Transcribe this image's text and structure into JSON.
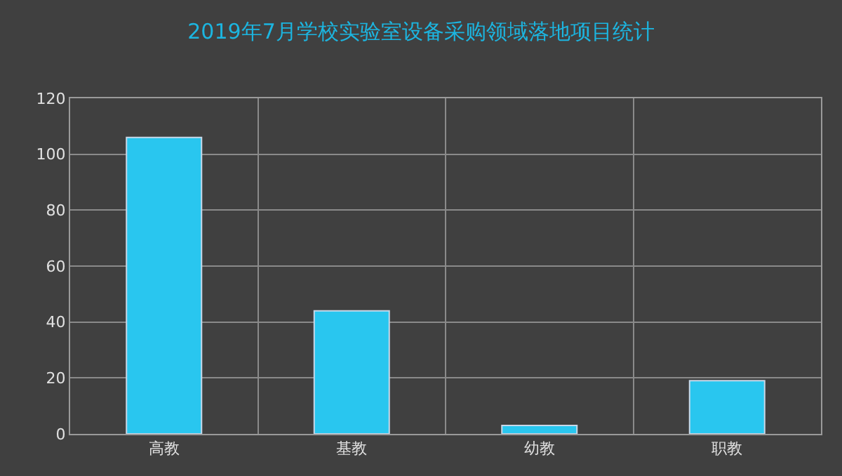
{
  "chart_data": {
    "type": "bar",
    "title": "2019年7月学校实验室设备采购领域落地项目统计",
    "categories": [
      "高教",
      "基教",
      "幼教",
      "职教"
    ],
    "values": [
      106,
      44,
      3,
      19
    ],
    "color": "#29c6ef",
    "ylim": [
      0,
      120
    ],
    "yticks": [
      0,
      20,
      40,
      60,
      80,
      100,
      120
    ],
    "grid": true
  }
}
